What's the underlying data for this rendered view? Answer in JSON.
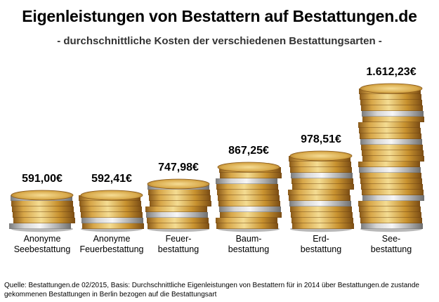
{
  "chart_data": {
    "type": "bar",
    "title": "Eigenleistungen von Bestattern auf Bestattungen.de",
    "subtitle": "- durchschnittliche Kosten der verschiedenen Bestattungsarten -",
    "categories": [
      [
        "Anonyme",
        "Seebestattung"
      ],
      [
        "Anonyme",
        "Feuerbestattung"
      ],
      [
        "Feuer-",
        "bestattung"
      ],
      [
        "Baum-",
        "bestattung"
      ],
      [
        "Erd-",
        "bestattung"
      ],
      [
        "See-",
        "bestattung"
      ]
    ],
    "values": [
      591.0,
      592.41,
      747.98,
      867.25,
      978.51,
      1612.23
    ],
    "value_labels": [
      "591,00€",
      "592,41€",
      "747,98€",
      "867,25€",
      "978,51€",
      "1.612,23€"
    ],
    "bar_style": "stacked coins",
    "colors": {
      "gold": "#c99a3c",
      "gold_light": "#f2d58a",
      "silver": "#b8b8b8",
      "silver_light": "#eeeeee"
    },
    "ylim": [
      0,
      1700
    ],
    "grid": false,
    "legend": "none"
  },
  "source": "Quelle: Bestattungen.de 02/2015, Basis: Durchschnittliche Eigenleistungen von Bestattern für in 2014 über Bestattungen.de zustande gekommenen Bestattungen in Berlin bezogen auf die Bestattungsart"
}
